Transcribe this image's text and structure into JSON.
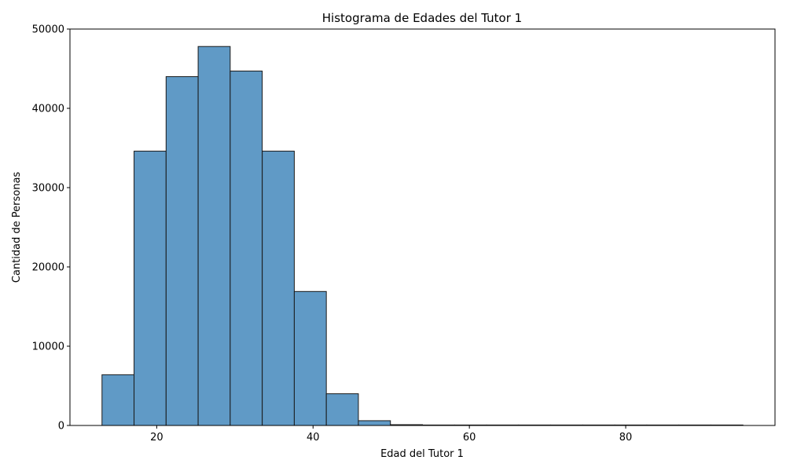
{
  "chart_data": {
    "type": "bar",
    "title": "Histograma de Edades del Tutor 1",
    "xlabel": "Edad del Tutor 1",
    "ylabel": "Cantidad de Personas",
    "bar_color": "#4f8fc0",
    "edge_color": "#1a1a1a",
    "grid": false,
    "legend": "none",
    "xlim": [
      8.9,
      99.1
    ],
    "ylim": [
      0,
      50000
    ],
    "xticks": [
      20,
      40,
      60,
      80
    ],
    "yticks": [
      0,
      10000,
      20000,
      30000,
      40000,
      50000
    ],
    "xtick_labels": [
      "20",
      "40",
      "60",
      "80"
    ],
    "ytick_labels": [
      "0",
      "10000",
      "20000",
      "30000",
      "40000",
      "50000"
    ],
    "bins": [
      {
        "x0": 13.0,
        "x1": 17.1,
        "value": 6400
      },
      {
        "x0": 17.1,
        "x1": 21.2,
        "value": 34600
      },
      {
        "x0": 21.2,
        "x1": 25.3,
        "value": 44000
      },
      {
        "x0": 25.3,
        "x1": 29.4,
        "value": 47800
      },
      {
        "x0": 29.4,
        "x1": 33.5,
        "value": 44700
      },
      {
        "x0": 33.5,
        "x1": 37.6,
        "value": 34600
      },
      {
        "x0": 37.6,
        "x1": 41.7,
        "value": 16900
      },
      {
        "x0": 41.7,
        "x1": 45.8,
        "value": 4000
      },
      {
        "x0": 45.8,
        "x1": 49.9,
        "value": 600
      },
      {
        "x0": 49.9,
        "x1": 54.0,
        "value": 100
      },
      {
        "x0": 54.0,
        "x1": 58.1,
        "value": 20
      },
      {
        "x0": 58.1,
        "x1": 62.2,
        "value": 10
      },
      {
        "x0": 62.2,
        "x1": 66.3,
        "value": 5
      },
      {
        "x0": 66.3,
        "x1": 70.4,
        "value": 3
      },
      {
        "x0": 70.4,
        "x1": 74.5,
        "value": 2
      },
      {
        "x0": 74.5,
        "x1": 78.6,
        "value": 1
      },
      {
        "x0": 78.6,
        "x1": 82.7,
        "value": 1
      },
      {
        "x0": 82.7,
        "x1": 86.8,
        "value": 1
      },
      {
        "x0": 86.8,
        "x1": 90.9,
        "value": 1
      },
      {
        "x0": 90.9,
        "x1": 95.0,
        "value": 1
      }
    ]
  }
}
